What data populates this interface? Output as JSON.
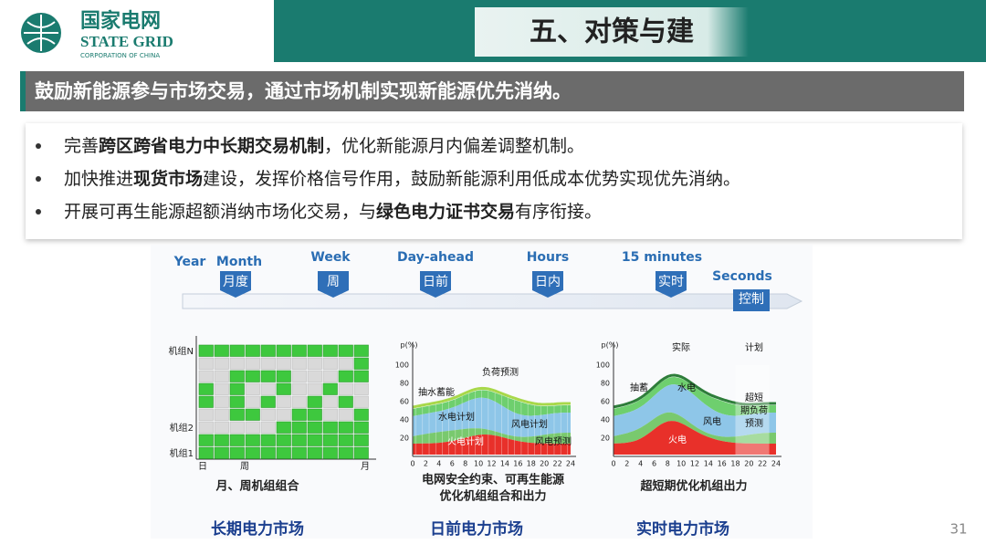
{
  "header": {
    "logo_name": "国家电网",
    "logo_en": "STATE GRID",
    "logo_sub": "CORPORATION OF CHINA",
    "title": "五、对策与建"
  },
  "banner": "鼓励新能源参与市场交易，通过市场机制实现新能源优先消纳。",
  "bullets": [
    [
      {
        "text": "完善"
      },
      {
        "text": "跨区跨省电力中长期交易机制",
        "bold": true
      },
      {
        "text": "，优化新能源月内偏差调整机制。"
      }
    ],
    [
      {
        "text": "加快推进"
      },
      {
        "text": "现货市场",
        "bold": true
      },
      {
        "text": "建设，发挥价格信号作用，鼓励新能源利用低成本优势实现优先消纳。"
      }
    ],
    [
      {
        "text": "开展可再生能源超额消纳市场化交易，与"
      },
      {
        "text": "绿色电力证书交易",
        "bold": true
      },
      {
        "text": "有序衔接。"
      }
    ]
  ],
  "timeline": {
    "stages": [
      {
        "en": "Year"
      },
      {
        "en": "Month",
        "cn": "月度"
      },
      {
        "en": "Week",
        "cn": "周"
      },
      {
        "en": "Day-ahead",
        "cn": "日前"
      },
      {
        "en": "Hours",
        "cn": "日内"
      },
      {
        "en": "15 minutes",
        "cn": "实时"
      },
      {
        "en": "Seconds",
        "cn": "控制"
      }
    ]
  },
  "panels": [
    {
      "title": "长期电力市场",
      "caption": [
        "月、周机组组合"
      ],
      "y_labels": [
        "机组N",
        "机组2",
        "机组1"
      ],
      "x_labels": [
        "日",
        "周",
        "月"
      ]
    },
    {
      "title": "日前电力市场",
      "caption": [
        "电网安全约束、可再生能源",
        "优化机组组合和出力"
      ],
      "y_axis": "p(%)",
      "yticks": [
        20,
        40,
        60,
        80,
        100
      ],
      "xticks": [
        0,
        2,
        4,
        6,
        8,
        10,
        12,
        14,
        16,
        18,
        20,
        22,
        24
      ],
      "annotations": [
        "抽水蓄能",
        "负荷预测",
        "水电计划",
        "风电计划",
        "火电计划",
        "风电预测"
      ]
    },
    {
      "title": "实时电力市场",
      "caption": [
        "超短期优化机组出力"
      ],
      "y_axis": "p(%)",
      "yticks": [
        20,
        40,
        60,
        80,
        100
      ],
      "xticks": [
        0,
        2,
        4,
        6,
        8,
        10,
        12,
        14,
        16,
        18,
        20,
        22,
        24
      ],
      "annotations": [
        "实际",
        "计划",
        "抽蓄",
        "水电",
        "风电",
        "火电",
        "超短",
        "期负荷",
        "预测"
      ]
    }
  ],
  "page_number": 31
}
